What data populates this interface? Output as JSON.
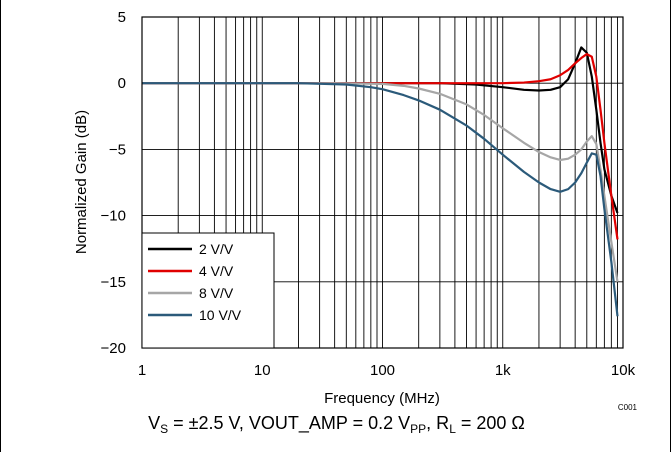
{
  "chart_data": {
    "type": "line",
    "title": "",
    "xlabel": "Frequency (MHz)",
    "ylabel": "Normalized Gain (dB)",
    "x_scale": "log",
    "xlim": [
      1,
      10000
    ],
    "ylim": [
      -20,
      5
    ],
    "x_ticks": [
      1,
      10,
      100,
      1000,
      10000
    ],
    "x_tick_labels": [
      "1",
      "10",
      "100",
      "1k",
      "10k"
    ],
    "y_ticks": [
      5,
      0,
      -5,
      -10,
      -15,
      -20
    ],
    "y_tick_labels": [
      "5",
      "0",
      "−5",
      "−10",
      "−15",
      "−20"
    ],
    "grid": true,
    "legend_position": "bottom-left",
    "figure_id": "C001",
    "series": [
      {
        "name": "2 V/V",
        "color": "#000000",
        "points": [
          [
            1,
            0
          ],
          [
            100,
            0
          ],
          [
            300,
            0
          ],
          [
            600,
            -0.1
          ],
          [
            1000,
            -0.3
          ],
          [
            1500,
            -0.5
          ],
          [
            2000,
            -0.55
          ],
          [
            2500,
            -0.5
          ],
          [
            3000,
            -0.3
          ],
          [
            3500,
            0.3
          ],
          [
            4000,
            1.5
          ],
          [
            4500,
            2.7
          ],
          [
            5000,
            2.3
          ],
          [
            5500,
            0.5
          ],
          [
            6000,
            -2
          ],
          [
            6500,
            -4.5
          ],
          [
            7000,
            -6.5
          ],
          [
            8000,
            -8.5
          ],
          [
            9000,
            -9.8
          ]
        ]
      },
      {
        "name": "4 V/V",
        "color": "#e00000",
        "points": [
          [
            1,
            0
          ],
          [
            100,
            0
          ],
          [
            500,
            0
          ],
          [
            1000,
            0
          ],
          [
            1500,
            0.05
          ],
          [
            2000,
            0.15
          ],
          [
            2500,
            0.3
          ],
          [
            3000,
            0.6
          ],
          [
            3500,
            1.0
          ],
          [
            4000,
            1.5
          ],
          [
            4500,
            1.9
          ],
          [
            5000,
            2.2
          ],
          [
            5500,
            2.0
          ],
          [
            6000,
            0.5
          ],
          [
            6500,
            -2
          ],
          [
            7000,
            -4.5
          ],
          [
            8000,
            -8.5
          ],
          [
            9000,
            -11.8
          ]
        ]
      },
      {
        "name": "8 V/V",
        "color": "#a6a6a6",
        "points": [
          [
            1,
            0
          ],
          [
            40,
            0
          ],
          [
            100,
            -0.05
          ],
          [
            150,
            -0.2
          ],
          [
            200,
            -0.4
          ],
          [
            300,
            -0.8
          ],
          [
            500,
            -1.6
          ],
          [
            700,
            -2.4
          ],
          [
            1000,
            -3.4
          ],
          [
            1500,
            -4.5
          ],
          [
            2000,
            -5.2
          ],
          [
            2500,
            -5.6
          ],
          [
            3000,
            -5.8
          ],
          [
            3500,
            -5.7
          ],
          [
            4000,
            -5.4
          ],
          [
            4500,
            -5.0
          ],
          [
            5000,
            -4.4
          ],
          [
            5500,
            -4.0
          ],
          [
            6000,
            -4.6
          ],
          [
            6500,
            -6.5
          ],
          [
            7000,
            -8.5
          ],
          [
            8000,
            -12
          ],
          [
            9000,
            -15
          ]
        ]
      },
      {
        "name": "10 V/V",
        "color": "#2b5a7a",
        "points": [
          [
            1,
            0
          ],
          [
            20,
            0
          ],
          [
            50,
            -0.1
          ],
          [
            80,
            -0.3
          ],
          [
            100,
            -0.45
          ],
          [
            150,
            -0.9
          ],
          [
            200,
            -1.3
          ],
          [
            300,
            -2.0
          ],
          [
            500,
            -3.2
          ],
          [
            700,
            -4.2
          ],
          [
            1000,
            -5.4
          ],
          [
            1500,
            -6.7
          ],
          [
            2000,
            -7.5
          ],
          [
            2500,
            -8.0
          ],
          [
            3000,
            -8.2
          ],
          [
            3500,
            -8.0
          ],
          [
            4000,
            -7.5
          ],
          [
            4500,
            -6.8
          ],
          [
            5000,
            -6.0
          ],
          [
            5500,
            -5.3
          ],
          [
            6000,
            -5.4
          ],
          [
            6500,
            -7
          ],
          [
            7000,
            -9.5
          ],
          [
            8000,
            -13.5
          ],
          [
            9000,
            -17.6
          ]
        ]
      }
    ],
    "caption": {
      "parts": [
        {
          "text": "V",
          "sub": false
        },
        {
          "text": "S",
          "sub": true
        },
        {
          "text": " = ±2.5 V, VOUT_AMP = 0.2 V",
          "sub": false
        },
        {
          "text": "PP",
          "sub": true
        },
        {
          "text": ", R",
          "sub": false
        },
        {
          "text": "L",
          "sub": true
        },
        {
          "text": " = 200 Ω",
          "sub": false
        }
      ]
    }
  }
}
